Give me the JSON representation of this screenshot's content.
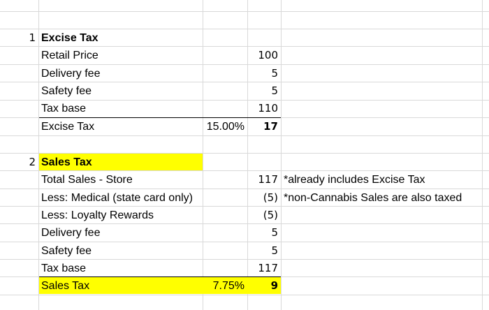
{
  "sections": [
    {
      "number": "1",
      "title": "Excise Tax",
      "rows": [
        {
          "label": "Retail Price",
          "pct": "",
          "value": "100",
          "note": ""
        },
        {
          "label": "Delivery fee",
          "pct": "",
          "value": "5",
          "note": ""
        },
        {
          "label": "Safety fee",
          "pct": "",
          "value": "5",
          "note": ""
        },
        {
          "label": "Tax base",
          "pct": "",
          "value": "110",
          "note": ""
        },
        {
          "label": "Excise Tax",
          "pct": "15.00%",
          "value": "17",
          "note": ""
        }
      ]
    },
    {
      "number": "2",
      "title": "Sales Tax",
      "rows": [
        {
          "label": "Total Sales - Store",
          "pct": "",
          "value": "117",
          "note": "*already includes Excise Tax"
        },
        {
          "label": "Less: Medical (state card only)",
          "pct": "",
          "value": "(5)",
          "note": "*non-Cannabis Sales are also taxed"
        },
        {
          "label": "Less: Loyalty Rewards",
          "pct": "",
          "value": "(5)",
          "note": ""
        },
        {
          "label": "Delivery fee",
          "pct": "",
          "value": "5",
          "note": ""
        },
        {
          "label": "Safety fee",
          "pct": "",
          "value": "5",
          "note": ""
        },
        {
          "label": "Tax base",
          "pct": "",
          "value": "117",
          "note": ""
        },
        {
          "label": "Sales Tax",
          "pct": "7.75%",
          "value": "9",
          "note": ""
        }
      ]
    }
  ],
  "colors": {
    "highlight": "#ffff00",
    "gridline": "#d9d9d9"
  }
}
